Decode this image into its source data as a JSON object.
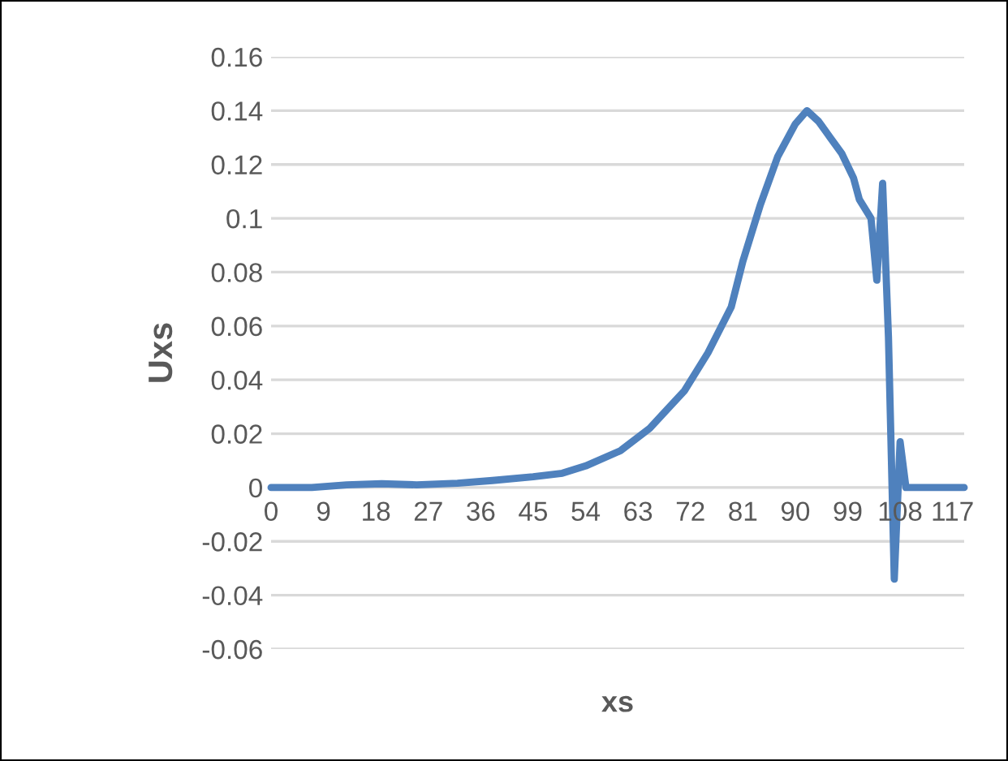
{
  "chart_data": {
    "type": "line",
    "xlabel": "xs",
    "ylabel": "Uxs",
    "x": [
      0,
      7,
      13,
      19,
      25,
      32,
      38,
      45,
      50,
      54,
      60,
      65,
      71,
      75,
      79,
      81,
      84,
      87,
      90,
      92,
      94,
      96,
      98,
      100,
      101,
      103,
      104,
      105,
      106,
      107,
      108,
      109,
      119
    ],
    "series": [
      {
        "color": "#4f81bd",
        "values": [
          0,
          0,
          0.001,
          0.0014,
          0.001,
          0.0016,
          0.0026,
          0.004,
          0.0053,
          0.008,
          0.0137,
          0.022,
          0.036,
          0.05,
          0.067,
          0.084,
          0.105,
          0.123,
          0.135,
          0.14,
          0.136,
          0.13,
          0.124,
          0.115,
          0.107,
          0.1,
          0.077,
          0.113,
          0.056,
          -0.034,
          0.017,
          0,
          0
        ]
      }
    ],
    "xlim": [
      0,
      119
    ],
    "xticks": [
      0,
      9,
      18,
      27,
      36,
      45,
      54,
      63,
      72,
      81,
      90,
      99,
      108,
      117
    ],
    "ylim": [
      -0.06,
      0.16
    ],
    "yticks": [
      -0.06,
      -0.04,
      -0.02,
      0,
      0.02,
      0.04,
      0.06,
      0.08,
      0.1,
      0.12,
      0.14,
      0.16
    ],
    "grid": "y",
    "marker": "none",
    "line_style": "solid"
  }
}
